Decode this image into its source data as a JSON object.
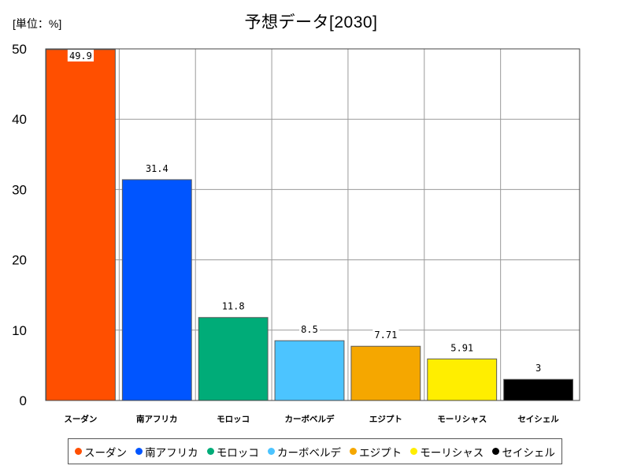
{
  "chart_data": {
    "type": "bar",
    "title": "予想データ[2030]",
    "unit_label": "[単位：%]",
    "categories": [
      "スーダン",
      "南アフリカ",
      "モロッコ",
      "カーボベルデ",
      "エジプト",
      "モーリシャス",
      "セイシェル"
    ],
    "values": [
      49.9,
      31.4,
      11.8,
      8.5,
      7.71,
      5.91,
      3
    ],
    "value_labels": [
      "49.9",
      "31.4",
      "11.8",
      "8.5",
      "7.71",
      "5.91",
      "3"
    ],
    "colors": [
      "#FF4F00",
      "#0055FF",
      "#00AC78",
      "#4CC4FF",
      "#F5A700",
      "#FFEE00",
      "#000000"
    ],
    "ylim": [
      0,
      50
    ],
    "yticks": [
      "0",
      "10",
      "20",
      "30",
      "40",
      "50"
    ],
    "grid": true,
    "legend_position": "bottom"
  }
}
